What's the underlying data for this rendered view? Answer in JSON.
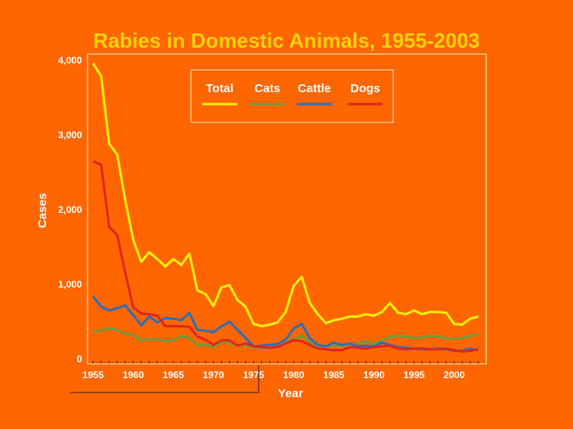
{
  "colors": {
    "background": "#ff6600",
    "title": "#ffd200",
    "text": "#ffffff",
    "frame": "#ffd7a8",
    "total": "#ffee00",
    "cats": "#6e9a3c",
    "cattle": "#2e6fb5",
    "dogs": "#e0251b"
  },
  "chart_data": {
    "type": "line",
    "title": "Rabies in Domestic Animals, 1955-2003",
    "xlabel": "Year",
    "ylabel": "Cases",
    "xlim": [
      1955,
      2003
    ],
    "ylim": [
      0,
      4000
    ],
    "xticks": [
      1955,
      1960,
      1965,
      1970,
      1975,
      1980,
      1985,
      1990,
      1995,
      2000
    ],
    "xtick_labels": [
      "1955",
      "1960",
      "1965",
      "1970",
      "1975",
      "1980",
      "1985",
      "1990",
      "1995",
      "2000"
    ],
    "yticks": [
      0,
      1000,
      2000,
      3000,
      4000
    ],
    "ytick_labels": [
      "0",
      "1,000",
      "2,000",
      "3,000",
      "4,000"
    ],
    "legend_position": "top-center",
    "grid": false,
    "x": [
      1955,
      1956,
      1957,
      1958,
      1959,
      1960,
      1961,
      1962,
      1963,
      1964,
      1965,
      1966,
      1967,
      1968,
      1969,
      1970,
      1971,
      1972,
      1973,
      1974,
      1975,
      1976,
      1977,
      1978,
      1979,
      1980,
      1981,
      1982,
      1983,
      1984,
      1985,
      1986,
      1987,
      1988,
      1989,
      1990,
      1991,
      1992,
      1993,
      1994,
      1995,
      1996,
      1997,
      1998,
      1999,
      2000,
      2001,
      2002,
      2003
    ],
    "series": [
      {
        "name": "Total",
        "color_key": "total",
        "values": [
          3950,
          3780,
          2870,
          2730,
          2120,
          1590,
          1290,
          1420,
          1330,
          1230,
          1330,
          1250,
          1400,
          910,
          860,
          700,
          950,
          980,
          780,
          690,
          460,
          430,
          450,
          480,
          620,
          970,
          1090,
          740,
          590,
          470,
          510,
          530,
          560,
          560,
          590,
          570,
          620,
          740,
          610,
          590,
          640,
          590,
          620,
          620,
          610,
          460,
          450,
          530,
          560
        ]
      },
      {
        "name": "Cats",
        "color_key": "cats",
        "values": [
          360,
          370,
          400,
          380,
          330,
          310,
          240,
          260,
          250,
          230,
          240,
          300,
          270,
          180,
          180,
          150,
          220,
          200,
          180,
          170,
          150,
          140,
          140,
          150,
          210,
          260,
          300,
          220,
          170,
          160,
          170,
          170,
          190,
          200,
          230,
          190,
          240,
          290,
          300,
          290,
          270,
          280,
          300,
          290,
          270,
          260,
          270,
          300,
          320
        ]
      },
      {
        "name": "Cattle",
        "color_key": "cattle",
        "values": [
          830,
          690,
          640,
          670,
          710,
          580,
          440,
          560,
          480,
          540,
          530,
          510,
          610,
          380,
          370,
          350,
          430,
          490,
          380,
          270,
          160,
          170,
          180,
          190,
          250,
          400,
          460,
          270,
          180,
          160,
          210,
          180,
          200,
          160,
          170,
          160,
          210,
          180,
          150,
          140,
          130,
          120,
          120,
          130,
          120,
          100,
          100,
          130,
          110
        ]
      },
      {
        "name": "Dogs",
        "color_key": "dogs",
        "values": [
          2640,
          2590,
          1760,
          1650,
          1150,
          680,
          600,
          590,
          570,
          430,
          430,
          430,
          420,
          290,
          250,
          180,
          240,
          240,
          170,
          200,
          160,
          150,
          140,
          150,
          200,
          240,
          230,
          180,
          130,
          120,
          110,
          110,
          150,
          140,
          130,
          150,
          160,
          170,
          130,
          120,
          130,
          130,
          120,
          120,
          130,
          110,
          90,
          100,
          120
        ]
      }
    ]
  }
}
